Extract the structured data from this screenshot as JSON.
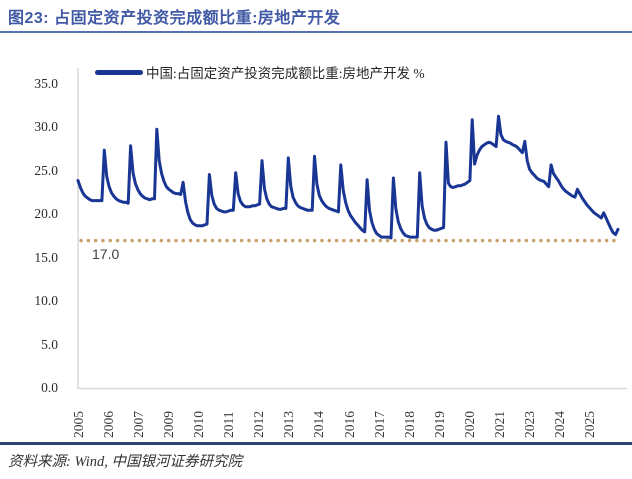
{
  "header": {
    "title": "图23: 占固定资产投资完成额比重:房地产开发"
  },
  "footer": {
    "source": "资料来源: Wind, 中国银河证券研究院"
  },
  "chart_data": {
    "type": "line",
    "title": "占固定资产投资完成额比重:房地产开发",
    "legend": [
      "中国:占固定资产投资完成额比重:房地产开发 %"
    ],
    "legend_position": "top",
    "grid": false,
    "ylim": [
      0,
      35
    ],
    "yticks": [
      "35.0",
      "30.0",
      "25.0",
      "20.0",
      "15.0",
      "10.0",
      "5.0",
      "0.0"
    ],
    "ytick_values": [
      35,
      30,
      25,
      20,
      15,
      10,
      5,
      0
    ],
    "xticklabels": [
      "2005",
      "2006",
      "2007",
      "2009",
      "2010",
      "2011",
      "2012",
      "2013",
      "2014",
      "2016",
      "2017",
      "2018",
      "2019",
      "2020",
      "2021",
      "2023",
      "2024",
      "2025"
    ],
    "x_note": "monthly cumulative YTD values, Feb-Dec each year 2005-2024, Feb-Aug 2025",
    "reference_line": {
      "value": 17.0,
      "label": "17.0",
      "style": "dotted",
      "color": "#C7A266"
    },
    "series_color": "#1A3694",
    "axis_color": "#D9D9D9",
    "data_by_year": {
      "2005": [
        23.9,
        23.1,
        22.5,
        22.1,
        21.9,
        21.7,
        21.6,
        21.6,
        21.6,
        21.6,
        21.6
      ],
      "2006": [
        27.4,
        24.4,
        23.2,
        22.5,
        22.1,
        21.8,
        21.6,
        21.5,
        21.4,
        21.4,
        21.3
      ],
      "2007": [
        27.9,
        24.8,
        23.6,
        22.9,
        22.4,
        22.1,
        21.9,
        21.8,
        21.7,
        21.8,
        21.8
      ],
      "2008": [
        29.8,
        26.2,
        24.7,
        23.8,
        23.2,
        22.9,
        22.7,
        22.5,
        22.4,
        22.4,
        22.3
      ],
      "2009": [
        23.7,
        21.5,
        20.2,
        19.4,
        19.0,
        18.8,
        18.7,
        18.7,
        18.7,
        18.8,
        18.9
      ],
      "2010": [
        24.6,
        22.2,
        21.2,
        20.7,
        20.5,
        20.4,
        20.3,
        20.3,
        20.4,
        20.5,
        20.5
      ],
      "2011": [
        24.8,
        22.4,
        21.5,
        21.1,
        20.9,
        20.9,
        20.9,
        21.0,
        21.0,
        21.1,
        21.2
      ],
      "2012": [
        26.2,
        23.0,
        21.8,
        21.2,
        20.9,
        20.8,
        20.7,
        20.6,
        20.6,
        20.7,
        20.7
      ],
      "2013": [
        26.5,
        23.3,
        22.0,
        21.4,
        21.0,
        20.8,
        20.7,
        20.6,
        20.5,
        20.5,
        20.5
      ],
      "2014": [
        26.7,
        23.5,
        22.2,
        21.6,
        21.2,
        20.9,
        20.7,
        20.6,
        20.5,
        20.4,
        20.3
      ],
      "2015": [
        25.7,
        22.8,
        21.4,
        20.5,
        19.9,
        19.5,
        19.1,
        18.8,
        18.5,
        18.2,
        18.0
      ],
      "2016": [
        24.0,
        20.5,
        19.1,
        18.3,
        17.8,
        17.6,
        17.4,
        17.4,
        17.4,
        17.4,
        17.3
      ],
      "2017": [
        24.2,
        20.7,
        19.2,
        18.4,
        17.9,
        17.6,
        17.5,
        17.4,
        17.4,
        17.4,
        17.4
      ],
      "2018": [
        24.8,
        21.0,
        19.6,
        18.9,
        18.5,
        18.3,
        18.2,
        18.2,
        18.3,
        18.4,
        18.5
      ],
      "2019": [
        28.3,
        23.6,
        23.2,
        23.1,
        23.2,
        23.3,
        23.3,
        23.4,
        23.5,
        23.7,
        23.9
      ],
      "2020": [
        30.9,
        25.8,
        26.8,
        27.4,
        27.8,
        28.0,
        28.2,
        28.3,
        28.2,
        28.0,
        27.8
      ],
      "2021": [
        31.3,
        29.2,
        28.6,
        28.4,
        28.3,
        28.2,
        28.0,
        27.9,
        27.7,
        27.4,
        27.1
      ],
      "2022": [
        28.4,
        26.2,
        25.2,
        24.8,
        24.5,
        24.2,
        24.0,
        23.9,
        23.8,
        23.5,
        23.2
      ],
      "2023": [
        25.7,
        24.7,
        24.3,
        23.9,
        23.4,
        23.0,
        22.7,
        22.5,
        22.3,
        22.1,
        22.0
      ],
      "2024": [
        22.9,
        22.4,
        21.9,
        21.5,
        21.1,
        20.8,
        20.5,
        20.2,
        20.0,
        19.8,
        19.6
      ],
      "2025": [
        20.2,
        19.6,
        19.0,
        18.4,
        17.9,
        17.7,
        18.3
      ]
    }
  }
}
